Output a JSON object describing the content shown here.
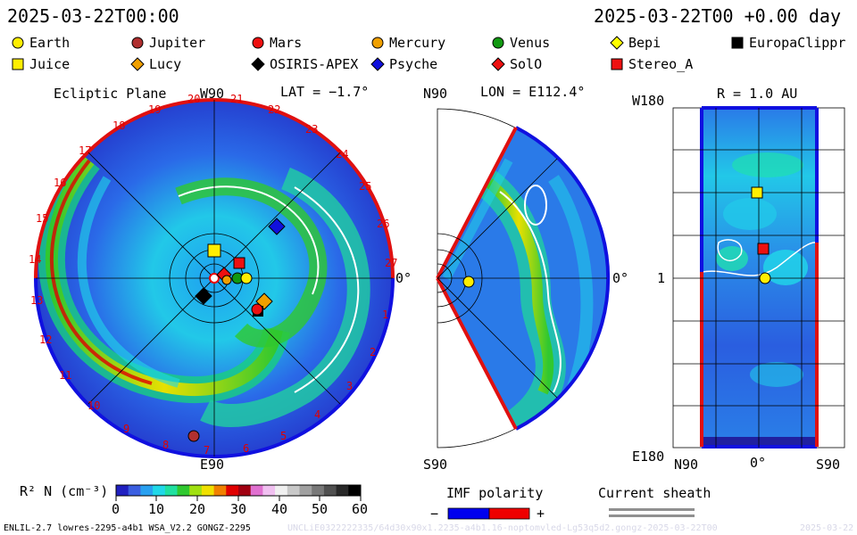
{
  "header": {
    "datetime": "2025-03-22T00:00",
    "forecast": "2025-03-22T00 +0.00 day"
  },
  "legend": {
    "items": [
      {
        "label": "Earth",
        "shape": "circle",
        "color": "#ffee00"
      },
      {
        "label": "Jupiter",
        "shape": "circle",
        "color": "#b03030"
      },
      {
        "label": "Mars",
        "shape": "circle",
        "color": "#ee1010"
      },
      {
        "label": "Mercury",
        "shape": "circle",
        "color": "#f0a000"
      },
      {
        "label": "Venus",
        "shape": "circle",
        "color": "#119911"
      },
      {
        "label": "Bepi",
        "shape": "diamond",
        "color": "#ffff00"
      },
      {
        "label": "EuropaClippr",
        "shape": "square",
        "color": "#000000"
      },
      {
        "label": "Juice",
        "shape": "square",
        "color": "#ffee00"
      },
      {
        "label": "Lucy",
        "shape": "diamond",
        "color": "#f0a000"
      },
      {
        "label": "OSIRIS-APEX",
        "shape": "diamond",
        "color": "#000000"
      },
      {
        "label": "Psyche",
        "shape": "diamond",
        "color": "#1010dd"
      },
      {
        "label": "SolO",
        "shape": "diamond",
        "color": "#ee1010"
      },
      {
        "label": "Stereo_A",
        "shape": "square",
        "color": "#ee1010"
      }
    ]
  },
  "panels": {
    "ecliptic": {
      "title": "Ecliptic Plane",
      "top_label": "W90",
      "lat_label": "LAT = −1.7°",
      "right_label": "0°",
      "bottom_label": "E90",
      "sector_labels": [
        "20",
        "21",
        "22",
        "23",
        "24",
        "25",
        "26",
        "27",
        "1",
        "2",
        "3",
        "4",
        "5",
        "6",
        "7",
        "8",
        "9",
        "10",
        "11",
        "12",
        "13",
        "14",
        "15",
        "16",
        "17",
        "18",
        "19"
      ]
    },
    "meridional": {
      "top_label": "N90",
      "lon_label": "LON = E112.4°",
      "right_label": "0°",
      "bottom_label": "S90"
    },
    "radial": {
      "top_label": "W180",
      "r_label": "R = 1.0 AU",
      "left_label": "1",
      "bottom_left": "E180",
      "x_left": "N90",
      "x_mid": "0°",
      "x_right": "S90"
    }
  },
  "colorbar": {
    "title": "R² N (cm⁻³)",
    "ticks": [
      "0",
      "10",
      "20",
      "30",
      "40",
      "50",
      "60"
    ],
    "colors": [
      "#2020c0",
      "#3a5ee0",
      "#28a0f0",
      "#20d8e8",
      "#20e0a0",
      "#30c830",
      "#a0e010",
      "#f0e000",
      "#f08000",
      "#e00000",
      "#a00010",
      "#e070d0",
      "#f0c0f0",
      "#f0f0f0",
      "#c8c8c8",
      "#a0a0a0",
      "#787878",
      "#505050",
      "#282828",
      "#000000"
    ]
  },
  "imf": {
    "title": "IMF polarity",
    "minus": "−",
    "plus": "+",
    "neg_color": "#0000ee",
    "pos_color": "#ee0000"
  },
  "sheath": {
    "title": "Current sheath"
  },
  "footer": {
    "model": "ENLIL-2.7 lowres-2295-a4b1 WSA_V2.2 GONGZ-2295",
    "run": "UNCLiE0322222335/64d30x90x1.2235-a4b1.16-noptomvled-Lg53q5d2.gongz-2025-03-22T00",
    "date": "2025-03-22"
  }
}
